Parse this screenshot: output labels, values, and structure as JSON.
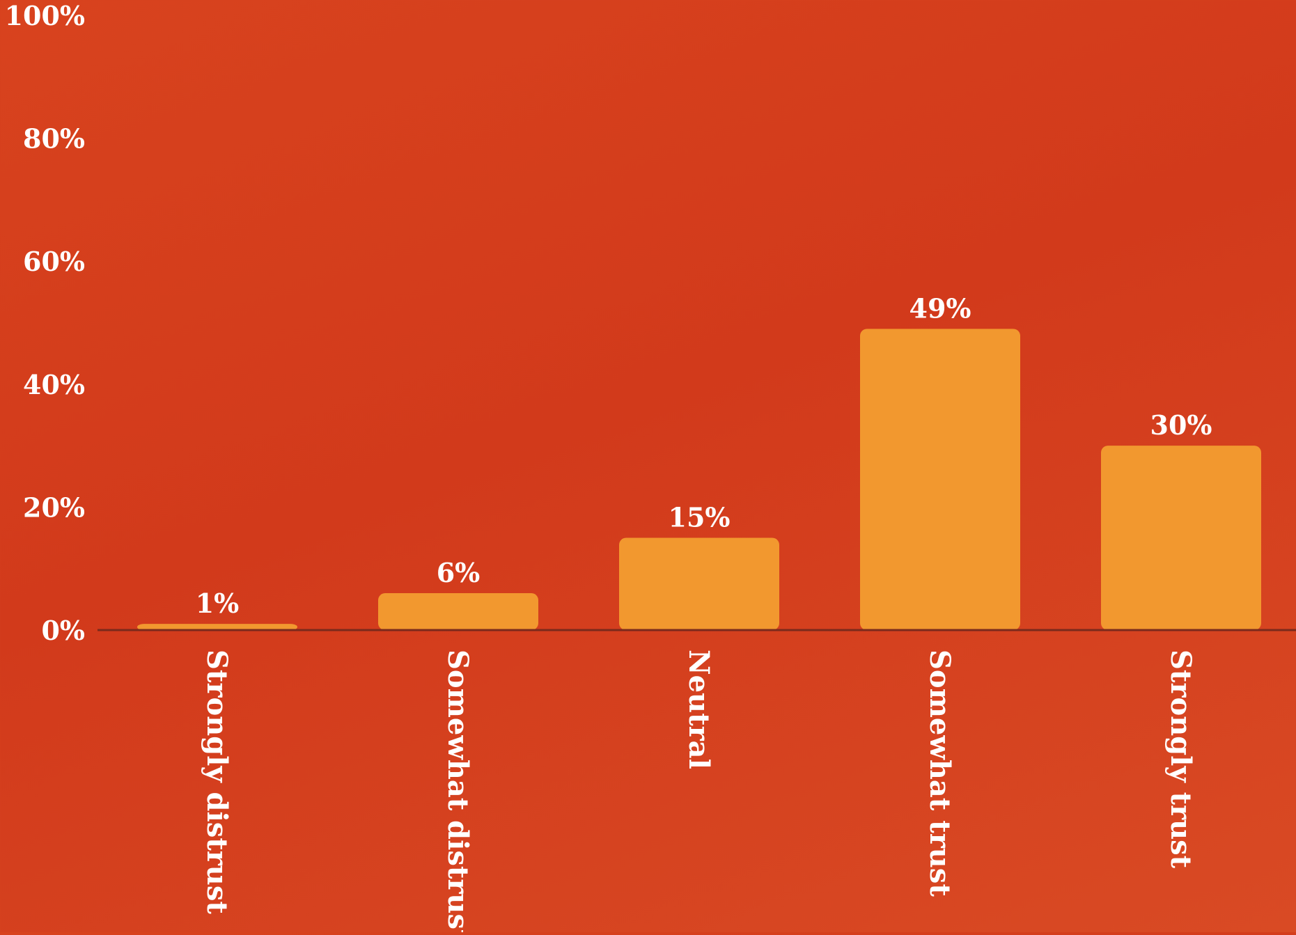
{
  "chart_data": {
    "type": "bar",
    "categories": [
      "Strongly distrust",
      "Somewhat distrust",
      "Neutral",
      "Somewhat trust",
      "Strongly trust"
    ],
    "values": [
      1,
      6,
      15,
      49,
      30
    ],
    "value_labels": [
      "1%",
      "6%",
      "15%",
      "49%",
      "30%"
    ],
    "ylim": [
      0,
      100
    ],
    "yticks": [
      0,
      20,
      40,
      60,
      80,
      100
    ],
    "ytick_labels": [
      "0%",
      "20%",
      "40%",
      "60%",
      "80%",
      "100%"
    ],
    "title": "",
    "xlabel": "",
    "ylabel": "",
    "grid": false,
    "legend": "none",
    "colors": {
      "background": "#d53c1c",
      "bar": "#f2982f",
      "text": "#ffffff",
      "axis": "#7a2a1c"
    }
  }
}
